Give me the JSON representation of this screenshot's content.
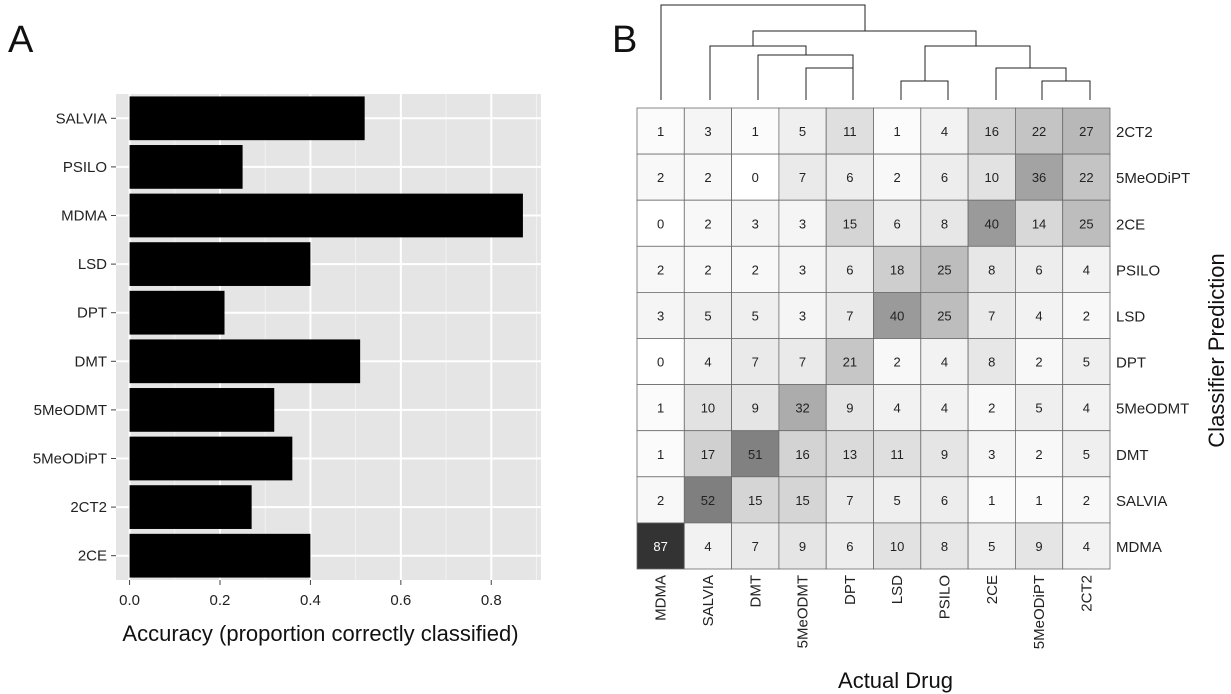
{
  "panels": {
    "a_label": "A",
    "b_label": "B"
  },
  "chart_data": [
    {
      "type": "bar",
      "orientation": "horizontal",
      "categories": [
        "SALVIA",
        "PSILO",
        "MDMA",
        "LSD",
        "DPT",
        "DMT",
        "5MeODMT",
        "5MeODiPT",
        "2CT2",
        "2CE"
      ],
      "values": [
        0.52,
        0.25,
        0.87,
        0.4,
        0.21,
        0.51,
        0.32,
        0.36,
        0.27,
        0.4
      ],
      "xlabel": "Accuracy (proportion correctly classified)",
      "ylabel": "",
      "xlim": [
        -0.03,
        0.91
      ],
      "xticks": [
        "0.0",
        "0.2",
        "0.4",
        "0.6",
        "0.8"
      ],
      "grid": true,
      "bar_color": "#000000",
      "panel_background": "#e5e5e5"
    },
    {
      "type": "heatmap",
      "x_categories": [
        "MDMA",
        "SALVIA",
        "DMT",
        "5MeODMT",
        "DPT",
        "LSD",
        "PSILO",
        "2CE",
        "5MeODiPT",
        "2CT2"
      ],
      "y_categories": [
        "2CT2",
        "5MeODiPT",
        "2CE",
        "PSILO",
        "LSD",
        "DPT",
        "5MeODMT",
        "DMT",
        "SALVIA",
        "MDMA"
      ],
      "values": [
        [
          1,
          3,
          1,
          5,
          11,
          1,
          4,
          16,
          22,
          27
        ],
        [
          2,
          2,
          0,
          7,
          6,
          2,
          6,
          10,
          36,
          22
        ],
        [
          0,
          2,
          3,
          3,
          15,
          6,
          8,
          40,
          14,
          25
        ],
        [
          2,
          2,
          2,
          3,
          6,
          18,
          25,
          8,
          6,
          4
        ],
        [
          3,
          5,
          5,
          3,
          7,
          40,
          25,
          7,
          4,
          2
        ],
        [
          0,
          4,
          7,
          7,
          21,
          2,
          4,
          8,
          2,
          5
        ],
        [
          1,
          10,
          9,
          32,
          9,
          4,
          4,
          2,
          5,
          4
        ],
        [
          1,
          17,
          51,
          16,
          13,
          11,
          9,
          3,
          2,
          5
        ],
        [
          2,
          52,
          15,
          15,
          7,
          5,
          6,
          1,
          1,
          2
        ],
        [
          87,
          4,
          7,
          9,
          6,
          10,
          8,
          5,
          9,
          4
        ]
      ],
      "xlabel": "Actual Drug",
      "ylabel": "Classifier Prediction",
      "color_low": "#ffffff",
      "color_high": "#333333",
      "dendrogram": "top"
    }
  ]
}
